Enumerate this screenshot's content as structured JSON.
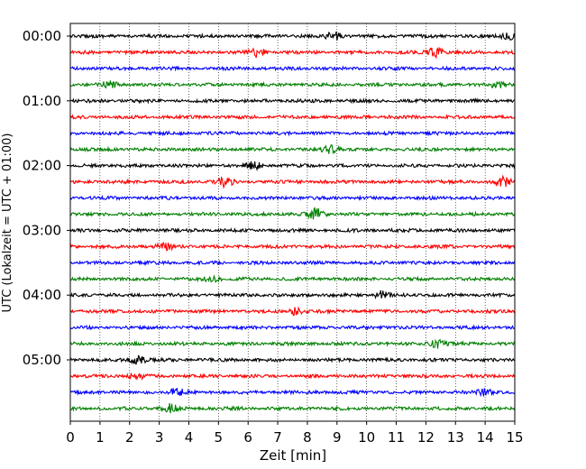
{
  "chart_data": {
    "type": "line",
    "title": "",
    "xlabel": "Zeit  [min]",
    "ylabel": "UTC (Lokalzeit = UTC + 01:00)",
    "xlim": [
      0,
      15
    ],
    "x_ticks": [
      "0",
      "1",
      "2",
      "3",
      "4",
      "5",
      "6",
      "7",
      "8",
      "9",
      "10",
      "11",
      "12",
      "13",
      "14",
      "15"
    ],
    "y_tick_labels": [
      "00:00",
      "01:00",
      "02:00",
      "03:00",
      "04:00",
      "05:00"
    ],
    "grid": "vertical dotted at each minute",
    "trace_interval_min": 15,
    "trace_count": 24,
    "trace_colors": [
      "#000000",
      "#ff0000",
      "#0000ff",
      "#008000"
    ],
    "bursts": [
      {
        "trace": 0,
        "x": 8.9,
        "amp": 1.0
      },
      {
        "trace": 0,
        "x": 14.8,
        "amp": 0.8
      },
      {
        "trace": 1,
        "x": 6.3,
        "amp": 1.0
      },
      {
        "trace": 1,
        "x": 12.3,
        "amp": 1.1
      },
      {
        "trace": 3,
        "x": 1.3,
        "amp": 0.8
      },
      {
        "trace": 3,
        "x": 14.5,
        "amp": 0.9
      },
      {
        "trace": 7,
        "x": 8.8,
        "amp": 0.9
      },
      {
        "trace": 8,
        "x": 6.2,
        "amp": 0.8
      },
      {
        "trace": 9,
        "x": 5.2,
        "amp": 1.1
      },
      {
        "trace": 9,
        "x": 14.6,
        "amp": 1.0
      },
      {
        "trace": 11,
        "x": 8.3,
        "amp": 1.2
      },
      {
        "trace": 13,
        "x": 3.2,
        "amp": 0.8
      },
      {
        "trace": 15,
        "x": 4.8,
        "amp": 0.7
      },
      {
        "trace": 16,
        "x": 10.5,
        "amp": 0.8
      },
      {
        "trace": 17,
        "x": 7.6,
        "amp": 0.8
      },
      {
        "trace": 19,
        "x": 12.4,
        "amp": 0.9
      },
      {
        "trace": 20,
        "x": 2.3,
        "amp": 0.9
      },
      {
        "trace": 21,
        "x": 2.2,
        "amp": 0.8
      },
      {
        "trace": 22,
        "x": 3.6,
        "amp": 0.8
      },
      {
        "trace": 22,
        "x": 14.0,
        "amp": 0.8
      },
      {
        "trace": 23,
        "x": 3.4,
        "amp": 1.0
      }
    ]
  }
}
